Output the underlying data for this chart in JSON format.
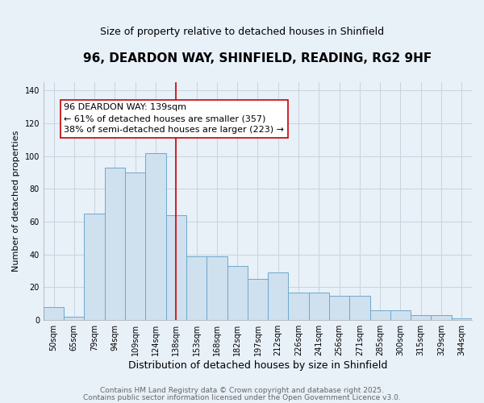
{
  "title": "96, DEARDON WAY, SHINFIELD, READING, RG2 9HF",
  "subtitle": "Size of property relative to detached houses in Shinfield",
  "xlabel": "Distribution of detached houses by size in Shinfield",
  "ylabel": "Number of detached properties",
  "categories": [
    "50sqm",
    "65sqm",
    "79sqm",
    "94sqm",
    "109sqm",
    "124sqm",
    "138sqm",
    "153sqm",
    "168sqm",
    "182sqm",
    "197sqm",
    "212sqm",
    "226sqm",
    "241sqm",
    "256sqm",
    "271sqm",
    "285sqm",
    "300sqm",
    "315sqm",
    "329sqm",
    "344sqm"
  ],
  "values": [
    8,
    2,
    65,
    93,
    90,
    102,
    64,
    39,
    39,
    33,
    25,
    29,
    17,
    17,
    15,
    15,
    6,
    6,
    3,
    3,
    1
  ],
  "bar_color": "#cfe0ef",
  "bar_edge_color": "#6fa8cc",
  "vline_x_index": 6,
  "vline_color": "#cc0000",
  "annotation_title": "96 DEARDON WAY: 139sqm",
  "annotation_line1": "← 61% of detached houses are smaller (357)",
  "annotation_line2": "38% of semi-detached houses are larger (223) →",
  "annotation_box_edge": "#cc0000",
  "ylim": [
    0,
    145
  ],
  "yticks": [
    0,
    20,
    40,
    60,
    80,
    100,
    120,
    140
  ],
  "grid_color": "#c8d4e0",
  "background_color": "#e8f0f8",
  "plot_bg_color": "#e8f0f8",
  "footer1": "Contains HM Land Registry data © Crown copyright and database right 2025.",
  "footer2": "Contains public sector information licensed under the Open Government Licence v3.0.",
  "title_fontsize": 11,
  "subtitle_fontsize": 9,
  "xlabel_fontsize": 9,
  "ylabel_fontsize": 8,
  "tick_fontsize": 7,
  "annotation_fontsize": 8,
  "footer_fontsize": 6.5
}
